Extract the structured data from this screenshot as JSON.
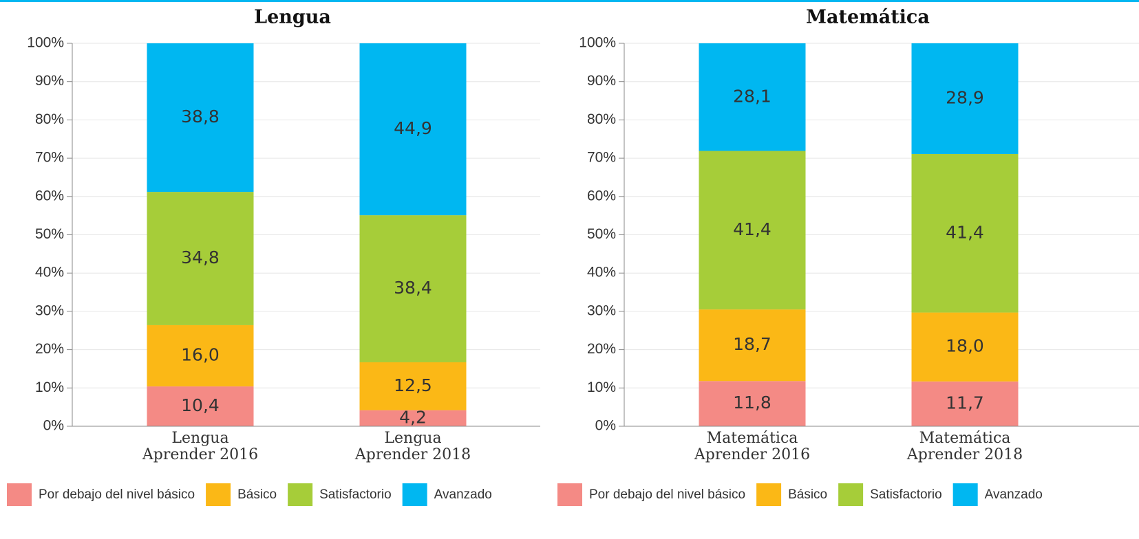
{
  "chart_data": [
    {
      "type": "stacked_bar",
      "title": "Lengua",
      "categories": [
        [
          "Lengua",
          "Aprender 2016"
        ],
        [
          "Lengua",
          "Aprender 2018"
        ]
      ],
      "series": [
        {
          "name": "Por debajo del nivel básico",
          "color": "#f48a85",
          "values": [
            10.4,
            4.2
          ],
          "value_labels": [
            "10,4",
            "4,2"
          ]
        },
        {
          "name": "Básico",
          "color": "#fbb816",
          "values": [
            16.0,
            12.5
          ],
          "value_labels": [
            "16,0",
            "12,5"
          ]
        },
        {
          "name": "Satisfactorio",
          "color": "#a6cd39",
          "values": [
            34.8,
            38.4
          ],
          "value_labels": [
            "34,8",
            "38,4"
          ]
        },
        {
          "name": "Avanzado",
          "color": "#00b7f1",
          "values": [
            38.8,
            44.9
          ],
          "value_labels": [
            "38,8",
            "44,9"
          ]
        }
      ],
      "ylim": [
        0,
        100
      ],
      "yticks": [
        {
          "value": 0,
          "label": "0%"
        },
        {
          "value": 10,
          "label": "10%"
        },
        {
          "value": 20,
          "label": "20%"
        },
        {
          "value": 30,
          "label": "30%"
        },
        {
          "value": 40,
          "label": "40%"
        },
        {
          "value": 50,
          "label": "50%"
        },
        {
          "value": 60,
          "label": "60%"
        },
        {
          "value": 70,
          "label": "70%"
        },
        {
          "value": 80,
          "label": "80%"
        },
        {
          "value": 90,
          "label": "90%"
        },
        {
          "value": 100,
          "label": "100%"
        }
      ],
      "grid": true,
      "legend": "bottom"
    },
    {
      "type": "stacked_bar",
      "title": "Matemática",
      "categories": [
        [
          "Matemática",
          "Aprender 2016"
        ],
        [
          "Matemática",
          "Aprender 2018"
        ]
      ],
      "series": [
        {
          "name": "Por debajo del nivel básico",
          "color": "#f48a85",
          "values": [
            11.8,
            11.7
          ],
          "value_labels": [
            "11,8",
            "11,7"
          ]
        },
        {
          "name": "Básico",
          "color": "#fbb816",
          "values": [
            18.7,
            18.0
          ],
          "value_labels": [
            "18,7",
            "18,0"
          ]
        },
        {
          "name": "Satisfactorio",
          "color": "#a6cd39",
          "values": [
            41.4,
            41.4
          ],
          "value_labels": [
            "41,4",
            "41,4"
          ]
        },
        {
          "name": "Avanzado",
          "color": "#00b7f1",
          "values": [
            28.1,
            28.9
          ],
          "value_labels": [
            "28,1",
            "28,9"
          ]
        }
      ],
      "ylim": [
        0,
        100
      ],
      "yticks": [
        {
          "value": 0,
          "label": "0%"
        },
        {
          "value": 10,
          "label": "10%"
        },
        {
          "value": 20,
          "label": "20%"
        },
        {
          "value": 30,
          "label": "30%"
        },
        {
          "value": 40,
          "label": "40%"
        },
        {
          "value": 50,
          "label": "50%"
        },
        {
          "value": 60,
          "label": "60%"
        },
        {
          "value": 70,
          "label": "70%"
        },
        {
          "value": 80,
          "label": "80%"
        },
        {
          "value": 90,
          "label": "90%"
        },
        {
          "value": 100,
          "label": "100%"
        }
      ],
      "grid": true,
      "legend": "bottom"
    }
  ]
}
